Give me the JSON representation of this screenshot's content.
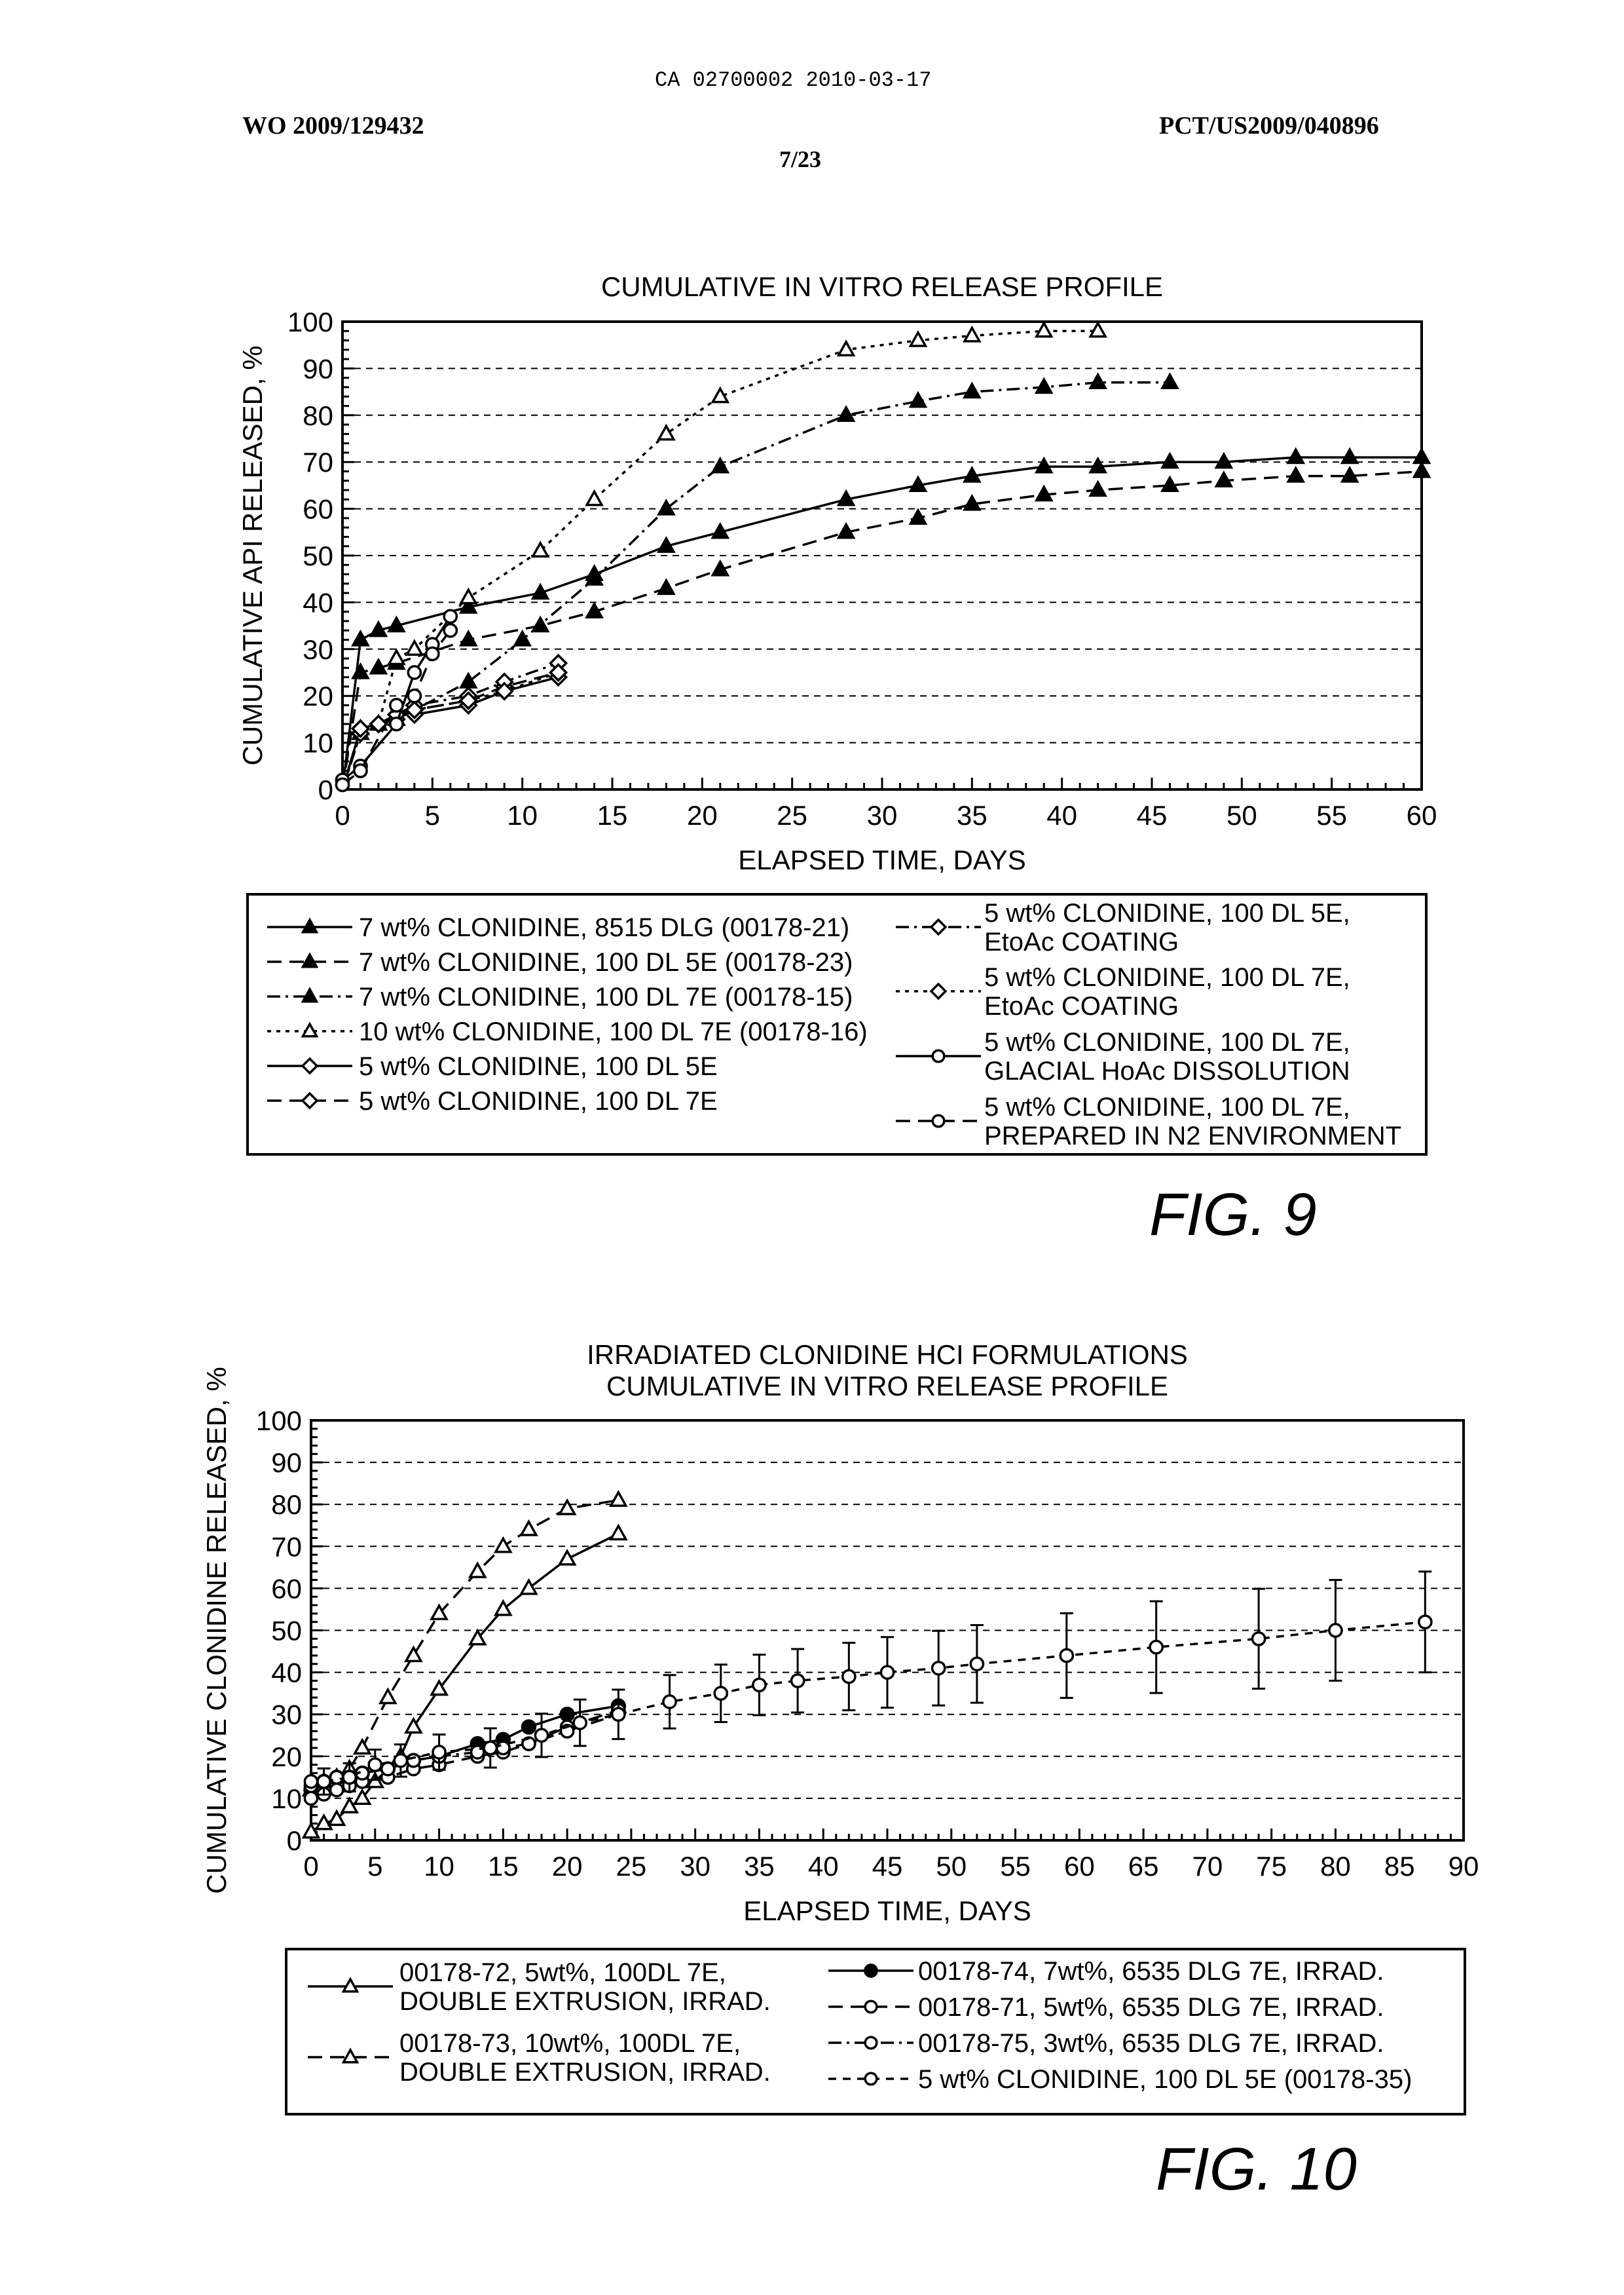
{
  "header": {
    "top_stamp": "CA 02700002 2010-03-17",
    "pub_left": "WO 2009/129432",
    "pub_right": "PCT/US2009/040896",
    "page_num": "7/23"
  },
  "figures": [
    {
      "id": "fig9",
      "caption": "FIG. 9"
    },
    {
      "id": "fig10",
      "caption": "FIG. 10"
    }
  ],
  "chart_data": [
    {
      "type": "line",
      "title": "CUMULATIVE IN VITRO RELEASE PROFILE",
      "xlabel": "ELAPSED TIME, DAYS",
      "ylabel": "CUMULATIVE API RELEASED, %",
      "xlim": [
        0,
        60
      ],
      "ylim": [
        0,
        100
      ],
      "xticks": [
        "0",
        "5",
        "10",
        "15",
        "20",
        "25",
        "30",
        "35",
        "40",
        "45",
        "50",
        "55",
        "60"
      ],
      "yticks": [
        "0",
        "10",
        "20",
        "30",
        "40",
        "50",
        "60",
        "70",
        "80",
        "90",
        "100"
      ],
      "grid": "horizontal dashed",
      "series": [
        {
          "name": "7 wt% CLONIDINE, 8515 DLG (00178-21)",
          "marker": "tri-filled",
          "dash": "solid",
          "x": [
            0,
            1,
            2,
            3,
            7,
            11,
            14,
            18,
            21,
            28,
            32,
            35,
            39,
            42,
            46,
            49,
            53,
            56,
            60
          ],
          "y": [
            0,
            32,
            34,
            35,
            39,
            42,
            46,
            52,
            55,
            62,
            65,
            67,
            69,
            69,
            70,
            70,
            71,
            71,
            71
          ]
        },
        {
          "name": "7 wt% CLONIDINE, 100 DL 5E (00178-23)",
          "marker": "tri-filled",
          "dash": "dashed",
          "x": [
            0,
            1,
            2,
            3,
            7,
            11,
            14,
            18,
            21,
            28,
            32,
            35,
            39,
            42,
            46,
            49,
            53,
            56,
            60
          ],
          "y": [
            0,
            25,
            26,
            27,
            32,
            35,
            38,
            43,
            47,
            55,
            58,
            61,
            63,
            64,
            65,
            66,
            67,
            67,
            68
          ]
        },
        {
          "name": "7 wt% CLONIDINE, 100 DL 7E (00178-15)",
          "marker": "tri-filled",
          "dash": "dashdot",
          "x": [
            0,
            1,
            2,
            3,
            7,
            10,
            14,
            18,
            21,
            28,
            32,
            35,
            39,
            42,
            46
          ],
          "y": [
            0,
            13,
            14,
            15,
            23,
            32,
            45,
            60,
            69,
            80,
            83,
            85,
            86,
            87,
            87
          ]
        },
        {
          "name": "10 wt% CLONIDINE, 100 DL 7E (00178-16)",
          "marker": "tri-open",
          "dash": "dotted",
          "x": [
            0,
            1,
            2,
            3,
            4,
            7,
            11,
            14,
            18,
            21,
            28,
            32,
            35,
            39,
            42
          ],
          "y": [
            0,
            12,
            14,
            28,
            30,
            41,
            51,
            62,
            76,
            84,
            94,
            96,
            97,
            98,
            98
          ]
        },
        {
          "name": "5 wt% CLONIDINE, 100 DL 5E",
          "marker": "diamond-open",
          "dash": "solid",
          "x": [
            0,
            1,
            2,
            3,
            4,
            7,
            9,
            12
          ],
          "y": [
            0,
            13,
            14,
            16,
            16,
            18,
            21,
            24
          ]
        },
        {
          "name": "5 wt% CLONIDINE, 100 DL 7E",
          "marker": "diamond-open",
          "dash": "dashed",
          "x": [
            0,
            1,
            2,
            3,
            4,
            7,
            9,
            12
          ],
          "y": [
            0,
            13,
            14,
            15,
            17,
            19,
            22,
            25
          ]
        },
        {
          "name": "5 wt% CLONIDINE, 100 DL 5E, EtoAc COATING",
          "marker": "diamond-open",
          "dash": "dashdot",
          "x": [
            0,
            1,
            2,
            3,
            4,
            7,
            9,
            12
          ],
          "y": [
            0,
            12,
            14,
            16,
            18,
            20,
            23,
            27
          ]
        },
        {
          "name": "5 wt% CLONIDINE, 100 DL 7E, EtoAc COATING",
          "marker": "diamond-open",
          "dash": "dotted",
          "x": [
            0,
            1,
            2,
            3,
            4,
            7,
            9,
            12
          ],
          "y": [
            0,
            13,
            14,
            16,
            17,
            19,
            21,
            25
          ]
        },
        {
          "name": "5 wt% CLONIDINE, 100 DL 7E, GLACIAL HoAc DISSOLUTION",
          "marker": "circle-open",
          "dash": "solid",
          "x": [
            0,
            1,
            3,
            4,
            5,
            6
          ],
          "y": [
            2,
            5,
            14,
            25,
            31,
            37
          ]
        },
        {
          "name": "5 wt% CLONIDINE, 100 DL 7E, PREPARED IN N2 ENVIRONMENT",
          "marker": "circle-open",
          "dash": "dashed",
          "x": [
            0,
            1,
            3,
            4,
            5,
            6
          ],
          "y": [
            1,
            4,
            18,
            20,
            29,
            34
          ]
        }
      ],
      "legend": {
        "placement": "below",
        "left": [
          "7 wt% CLONIDINE, 8515 DLG (00178-21)",
          "7 wt% CLONIDINE, 100 DL 5E (00178-23)",
          "7 wt% CLONIDINE, 100 DL 7E (00178-15)",
          "10 wt% CLONIDINE, 100 DL 7E (00178-16)",
          "5 wt% CLONIDINE, 100 DL 5E",
          "5 wt% CLONIDINE, 100 DL 7E"
        ],
        "right": [
          [
            "5 wt% CLONIDINE, 100 DL 5E,",
            "EtoAc COATING"
          ],
          [
            "5 wt% CLONIDINE, 100 DL 7E,",
            "EtoAc COATING"
          ],
          [
            "5 wt% CLONIDINE, 100 DL 7E,",
            "GLACIAL HoAc DISSOLUTION"
          ],
          [
            "5 wt% CLONIDINE, 100 DL 7E,",
            "PREPARED IN N2 ENVIRONMENT"
          ]
        ]
      }
    },
    {
      "type": "line",
      "title": [
        "IRRADIATED CLONIDINE HCI FORMULATIONS",
        "CUMULATIVE IN VITRO RELEASE PROFILE"
      ],
      "xlabel": "ELAPSED TIME, DAYS",
      "ylabel": "CUMULATIVE CLONIDINE RELEASED, %",
      "xlim": [
        0,
        90
      ],
      "ylim": [
        0,
        100
      ],
      "xticks": [
        "0",
        "5",
        "10",
        "15",
        "20",
        "25",
        "30",
        "35",
        "40",
        "45",
        "50",
        "55",
        "60",
        "65",
        "70",
        "75",
        "80",
        "85",
        "90"
      ],
      "yticks": [
        "0",
        "10",
        "20",
        "30",
        "40",
        "50",
        "60",
        "70",
        "80",
        "90",
        "100"
      ],
      "grid": "horizontal dashed",
      "series": [
        {
          "name": "00178-72, 5wt%, 100DL 7E, DOUBLE EXTRUSION, IRRAD.",
          "marker": "tri-open",
          "dash": "solid",
          "x": [
            0,
            1,
            2,
            3,
            4,
            5,
            7,
            8,
            10,
            13,
            15,
            17,
            20,
            24
          ],
          "y": [
            2,
            4,
            5,
            8,
            10,
            14,
            20,
            27,
            36,
            48,
            55,
            60,
            67,
            73
          ]
        },
        {
          "name": "00178-73, 10wt%, 100DL 7E, DOUBLE EXTRUSION, IRRAD.",
          "marker": "tri-open",
          "dash": "dashed",
          "x": [
            0,
            1,
            2,
            3,
            4,
            6,
            8,
            10,
            13,
            15,
            17,
            20,
            24
          ],
          "y": [
            12,
            14,
            15,
            17,
            22,
            34,
            44,
            54,
            64,
            70,
            74,
            79,
            81
          ]
        },
        {
          "name": "00178-74, 7wt%, 6535 DLG 7E, IRRAD.",
          "marker": "circle-filled",
          "dash": "solid",
          "x": [
            0,
            1,
            2,
            3,
            4,
            6,
            8,
            10,
            13,
            15,
            17,
            20,
            24
          ],
          "y": [
            12,
            14,
            15,
            15,
            16,
            17,
            19,
            20,
            23,
            24,
            27,
            30,
            32
          ]
        },
        {
          "name": "00178-71, 5wt%, 6535 DLG 7E, IRRAD.",
          "marker": "circle-open",
          "dash": "dashed",
          "x": [
            0,
            1,
            2,
            3,
            4,
            6,
            8,
            10,
            13,
            15,
            17,
            20,
            24
          ],
          "y": [
            10,
            11,
            12,
            13,
            14,
            15,
            17,
            18,
            20,
            21,
            23,
            27,
            31
          ]
        },
        {
          "name": "00178-75, 3wt%, 6535 DLG 7E, IRRAD.",
          "marker": "circle-open",
          "dash": "dashdot",
          "x": [
            0,
            1,
            2,
            3,
            4,
            6,
            8,
            10,
            13,
            15,
            17,
            20,
            24
          ],
          "y": [
            13,
            14,
            15,
            15,
            16,
            17,
            19,
            20,
            21,
            22,
            23,
            26,
            30
          ]
        },
        {
          "name": "5 wt% CLONIDINE, 100 DL 5E (00178-35)",
          "marker": "circle-open",
          "dash": "dashed2",
          "x": [
            0,
            1,
            3,
            5,
            7,
            10,
            14,
            18,
            21,
            24,
            28,
            32,
            35,
            38,
            42,
            45,
            49,
            52,
            59,
            66,
            74,
            80,
            87
          ],
          "y": [
            14,
            14,
            15,
            18,
            19,
            21,
            22,
            25,
            28,
            30,
            33,
            35,
            37,
            38,
            39,
            40,
            41,
            42,
            44,
            46,
            48,
            50,
            52
          ]
        }
      ],
      "legend": {
        "placement": "below",
        "left": [
          [
            "00178-72, 5wt%, 100DL 7E,",
            "DOUBLE EXTRUSION, IRRAD."
          ],
          [
            "00178-73, 10wt%, 100DL 7E,",
            "DOUBLE EXTRUSION, IRRAD."
          ]
        ],
        "right": [
          "00178-74, 7wt%, 6535 DLG 7E, IRRAD.",
          "00178-71, 5wt%, 6535 DLG 7E, IRRAD.",
          "00178-75, 3wt%, 6535 DLG 7E, IRRAD.",
          "5 wt% CLONIDINE, 100 DL 5E (00178-35)"
        ]
      }
    }
  ]
}
